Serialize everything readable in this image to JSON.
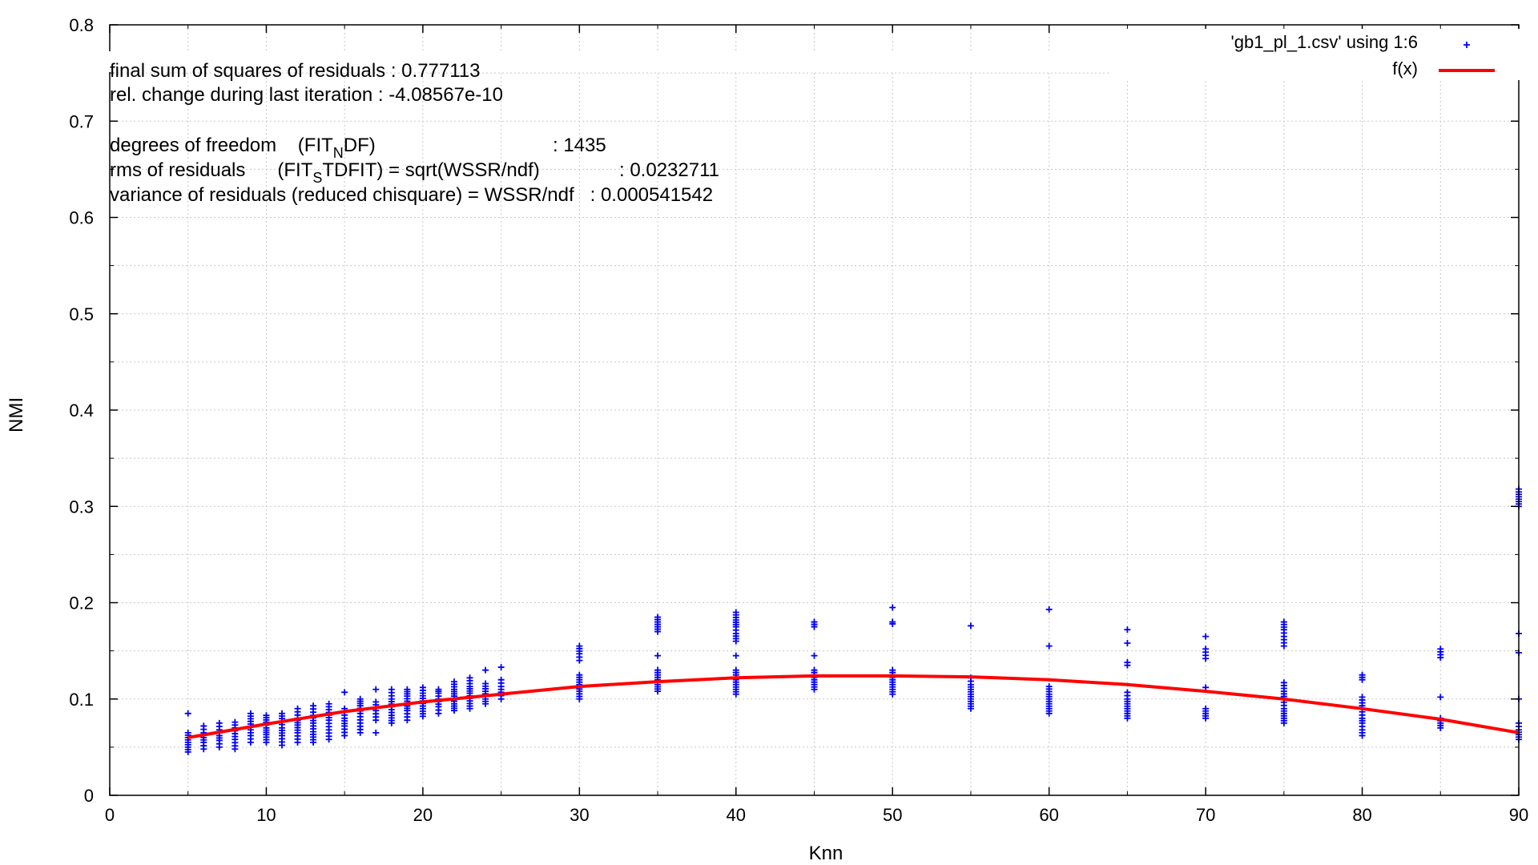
{
  "fit_stats": {
    "line1": "final sum of squares of residuals : 0.777113",
    "line2": "rel. change during last iteration : -4.08567e-10",
    "line3_a": "degrees of freedom    (FIT",
    "line3_sub": "N",
    "line3_b": "DF)",
    "line3_val": ": 1435",
    "line4_a": "rms of residuals      (FIT",
    "line4_sub": "S",
    "line4_b": "TDFIT) = sqrt(WSSR/ndf)",
    "line4_val": ": 0.0232711",
    "line5": "variance of residuals (reduced chisquare) = WSSR/ndf   : 0.000541542"
  },
  "legend": {
    "series1": "'gb1_pl_1.csv' using 1:6",
    "series2": "f(x)"
  },
  "colors": {
    "points": "#0000ff",
    "fit": "#ff0000",
    "grid": "#c8c8c8",
    "axis": "#000000"
  },
  "chart_data": {
    "type": "scatter",
    "xlabel": "Knn",
    "ylabel": "NMI",
    "xlim": [
      0,
      90
    ],
    "ylim": [
      0,
      0.8
    ],
    "xticks": [
      0,
      10,
      20,
      30,
      40,
      50,
      60,
      70,
      80,
      90
    ],
    "yticks": [
      0,
      0.1,
      0.2,
      0.3,
      0.4,
      0.5,
      0.6,
      0.7,
      0.8
    ],
    "grid": true,
    "legend_position": "top-right",
    "series": [
      {
        "name": "'gb1_pl_1.csv' using 1:6",
        "marker": "plus",
        "clusters": [
          {
            "x": 5,
            "y": [
              0.045,
              0.05,
              0.055,
              0.06,
              0.065,
              0.085
            ]
          },
          {
            "x": 6,
            "y": [
              0.048,
              0.055,
              0.06,
              0.065,
              0.072
            ]
          },
          {
            "x": 7,
            "y": [
              0.05,
              0.057,
              0.062,
              0.068,
              0.075
            ]
          },
          {
            "x": 8,
            "y": [
              0.048,
              0.058,
              0.064,
              0.07,
              0.076
            ]
          },
          {
            "x": 9,
            "y": [
              0.055,
              0.062,
              0.068,
              0.074,
              0.085
            ]
          },
          {
            "x": 10,
            "y": [
              0.055,
              0.063,
              0.07,
              0.076,
              0.083
            ]
          },
          {
            "x": 11,
            "y": [
              0.052,
              0.062,
              0.07,
              0.077,
              0.085
            ]
          },
          {
            "x": 12,
            "y": [
              0.055,
              0.065,
              0.073,
              0.08,
              0.09
            ]
          },
          {
            "x": 13,
            "y": [
              0.055,
              0.066,
              0.075,
              0.083,
              0.093
            ]
          },
          {
            "x": 14,
            "y": [
              0.058,
              0.068,
              0.078,
              0.086,
              0.095
            ]
          },
          {
            "x": 15,
            "y": [
              0.062,
              0.072,
              0.08,
              0.09,
              0.107
            ]
          },
          {
            "x": 16,
            "y": [
              0.065,
              0.075,
              0.085,
              0.093,
              0.1
            ]
          },
          {
            "x": 17,
            "y": [
              0.065,
              0.078,
              0.088,
              0.097,
              0.11
            ]
          },
          {
            "x": 18,
            "y": [
              0.075,
              0.083,
              0.092,
              0.1,
              0.11
            ]
          },
          {
            "x": 19,
            "y": [
              0.078,
              0.088,
              0.095,
              0.103,
              0.11
            ]
          },
          {
            "x": 20,
            "y": [
              0.082,
              0.09,
              0.098,
              0.106,
              0.112
            ]
          },
          {
            "x": 21,
            "y": [
              0.085,
              0.092,
              0.1,
              0.106,
              0.11
            ]
          },
          {
            "x": 22,
            "y": [
              0.088,
              0.095,
              0.103,
              0.11,
              0.118
            ]
          },
          {
            "x": 23,
            "y": [
              0.09,
              0.098,
              0.106,
              0.113,
              0.122
            ]
          },
          {
            "x": 24,
            "y": [
              0.095,
              0.1,
              0.108,
              0.116,
              0.13
            ]
          },
          {
            "x": 25,
            "y": [
              0.1,
              0.107,
              0.113,
              0.12,
              0.133
            ]
          },
          {
            "x": 30,
            "y": [
              0.1,
              0.108,
              0.115,
              0.12,
              0.125,
              0.14,
              0.147,
              0.155
            ]
          },
          {
            "x": 35,
            "y": [
              0.108,
              0.115,
              0.12,
              0.125,
              0.13,
              0.145,
              0.17,
              0.175,
              0.18,
              0.185
            ]
          },
          {
            "x": 40,
            "y": [
              0.105,
              0.11,
              0.115,
              0.12,
              0.125,
              0.13,
              0.145,
              0.16,
              0.168,
              0.175,
              0.182,
              0.19
            ]
          },
          {
            "x": 45,
            "y": [
              0.11,
              0.115,
              0.12,
              0.125,
              0.13,
              0.145,
              0.175,
              0.18
            ]
          },
          {
            "x": 50,
            "y": [
              0.105,
              0.11,
              0.115,
              0.12,
              0.125,
              0.13,
              0.178,
              0.18,
              0.195
            ]
          },
          {
            "x": 55,
            "y": [
              0.09,
              0.095,
              0.1,
              0.105,
              0.11,
              0.115,
              0.122,
              0.176
            ]
          },
          {
            "x": 60,
            "y": [
              0.085,
              0.09,
              0.095,
              0.1,
              0.105,
              0.113,
              0.155,
              0.193
            ]
          },
          {
            "x": 65,
            "y": [
              0.08,
              0.085,
              0.09,
              0.095,
              0.1,
              0.107,
              0.135,
              0.138,
              0.158,
              0.172
            ]
          },
          {
            "x": 70,
            "y": [
              0.08,
              0.085,
              0.09,
              0.112,
              0.142,
              0.152,
              0.165
            ]
          },
          {
            "x": 75,
            "y": [
              0.075,
              0.08,
              0.085,
              0.09,
              0.1,
              0.108,
              0.117,
              0.155,
              0.165,
              0.172,
              0.18
            ]
          },
          {
            "x": 80,
            "y": [
              0.062,
              0.068,
              0.075,
              0.08,
              0.09,
              0.102,
              0.12,
              0.125
            ]
          },
          {
            "x": 85,
            "y": [
              0.07,
              0.075,
              0.08,
              0.102,
              0.143,
              0.152
            ]
          },
          {
            "x": 90,
            "y": [
              0.058,
              0.063,
              0.068,
              0.075,
              0.1,
              0.148,
              0.168,
              0.3,
              0.305,
              0.31,
              0.315,
              0.318
            ]
          }
        ]
      },
      {
        "name": "f(x)",
        "type": "line",
        "x": [
          5,
          10,
          15,
          20,
          25,
          30,
          35,
          40,
          45,
          50,
          55,
          60,
          65,
          70,
          75,
          80,
          85,
          90
        ],
        "y": [
          0.06,
          0.074,
          0.087,
          0.097,
          0.105,
          0.113,
          0.118,
          0.122,
          0.124,
          0.124,
          0.123,
          0.12,
          0.115,
          0.108,
          0.1,
          0.09,
          0.079,
          0.065
        ]
      }
    ]
  }
}
